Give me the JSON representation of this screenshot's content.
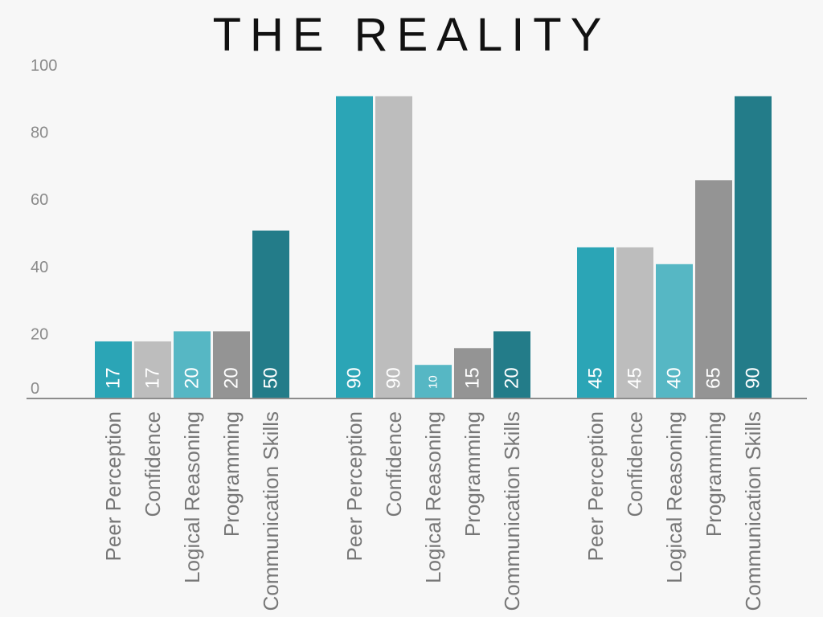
{
  "page": {
    "title": "THE REALITY"
  },
  "chart_data": {
    "type": "bar",
    "title": "THE REALITY",
    "xlabel": "",
    "ylabel": "",
    "ylim": [
      0,
      100
    ],
    "yticks": [
      0,
      20,
      40,
      60,
      80,
      100
    ],
    "grid": false,
    "legend": "none",
    "groups": [
      {
        "categories": [
          "Peer Perception",
          "Confidence",
          "Logical Reasoning",
          "Programming",
          "Communication Skills"
        ],
        "values": [
          17,
          17,
          20,
          20,
          50
        ]
      },
      {
        "categories": [
          "Peer Perception",
          "Confidence",
          "Logical Reasoning",
          "Programming",
          "Communication Skills"
        ],
        "values": [
          90,
          90,
          10,
          15,
          20
        ]
      },
      {
        "categories": [
          "Peer Perception",
          "Confidence",
          "Logical Reasoning",
          "Programming",
          "Communication Skills"
        ],
        "values": [
          45,
          45,
          40,
          65,
          90
        ]
      }
    ],
    "colors": [
      "#2ba5b6",
      "#bdbdbd",
      "#56b7c4",
      "#949494",
      "#237c89"
    ],
    "axis_color": "#8c8c8c"
  }
}
